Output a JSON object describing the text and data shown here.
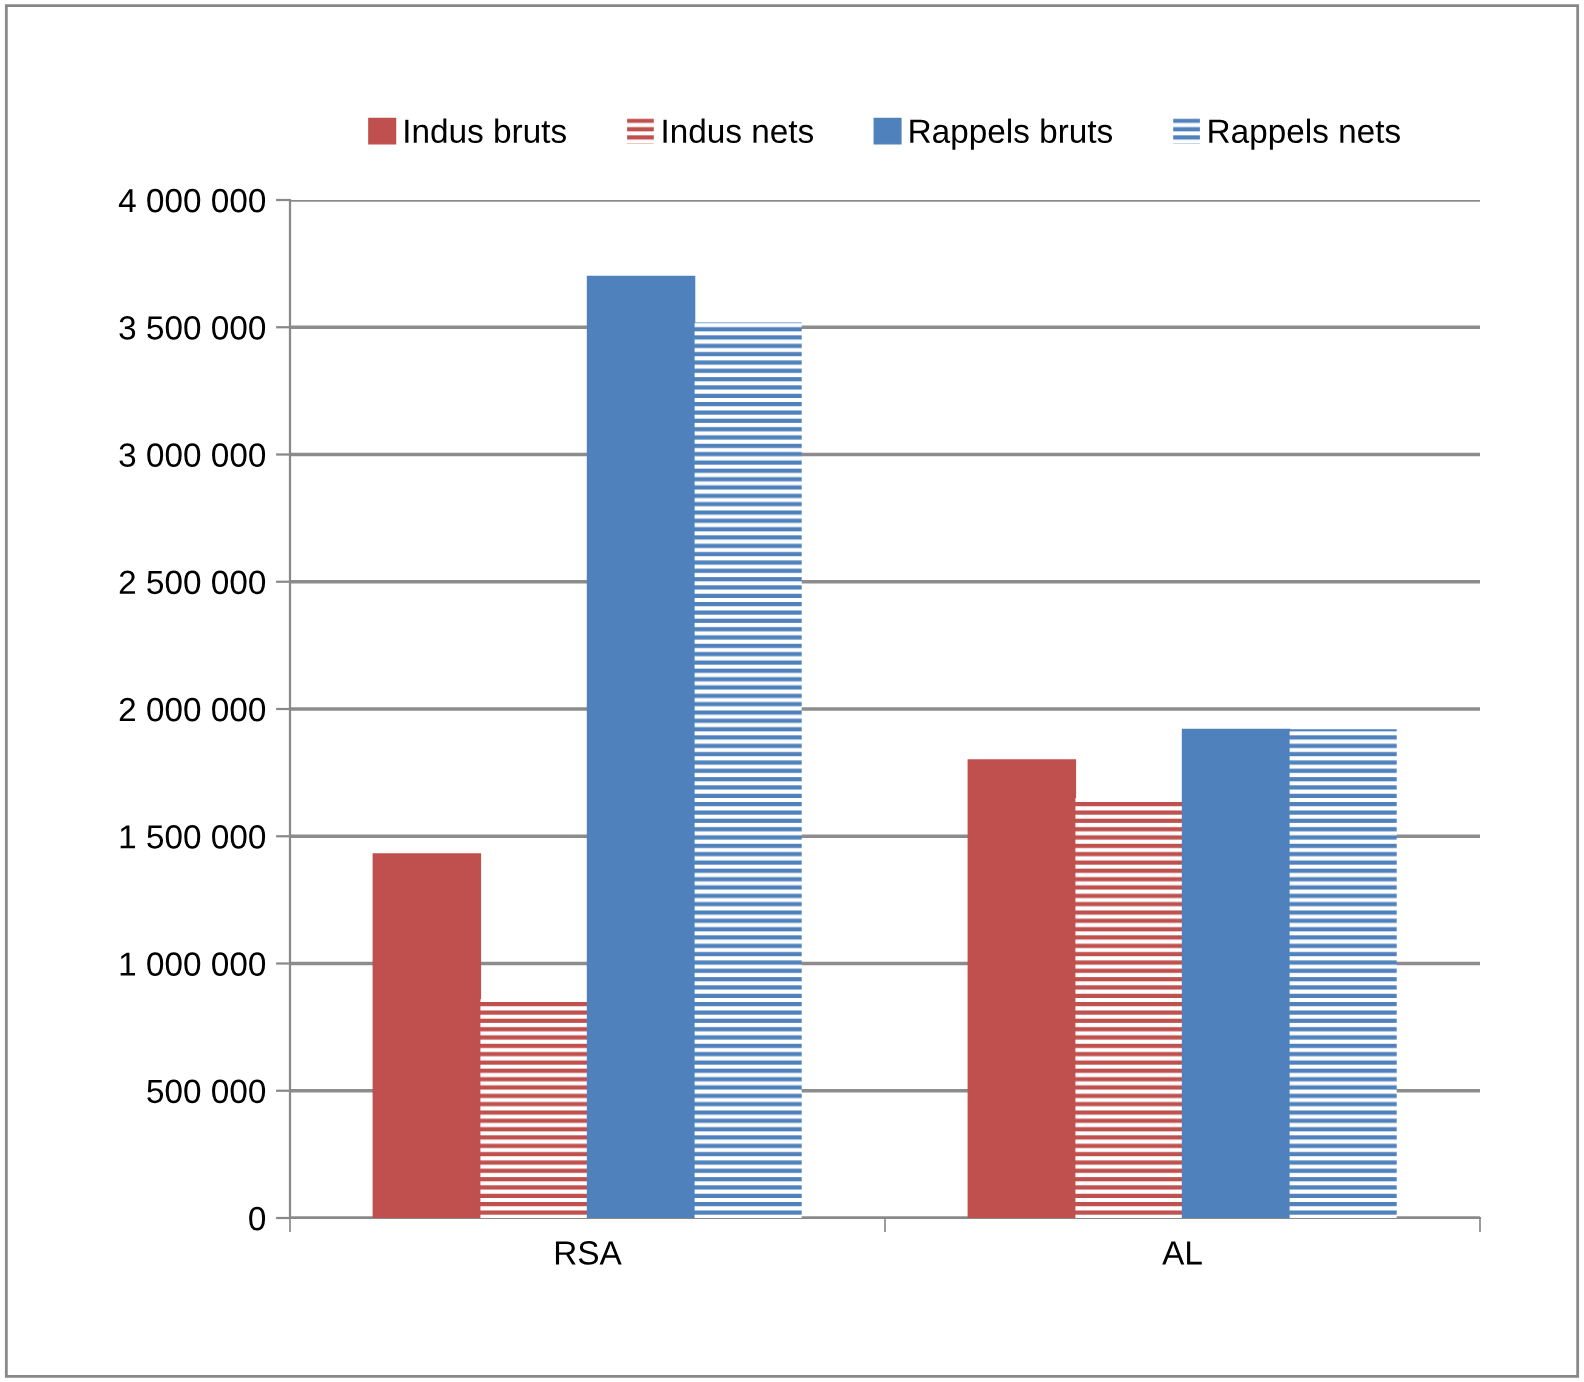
{
  "chart_data": {
    "type": "bar",
    "categories": [
      "RSA",
      "AL"
    ],
    "series": [
      {
        "name": "Indus bruts",
        "color": "#c0504d",
        "values": [
          1430000,
          1800000
        ]
      },
      {
        "name": "Indus nets",
        "color": "#c0504d",
        "values": [
          860000,
          1650000
        ]
      },
      {
        "name": "Rappels bruts",
        "color": "#4f81bd",
        "values": [
          3700000,
          1920000
        ]
      },
      {
        "name": "Rappels nets",
        "color": "#4f81bd",
        "values": [
          3520000,
          1920000
        ]
      }
    ],
    "ylim": [
      0,
      4000000
    ],
    "yticks": [
      {
        "value": 0,
        "label": "0"
      },
      {
        "value": 500000,
        "label": "500 000"
      },
      {
        "value": 1000000,
        "label": "1 000 000"
      },
      {
        "value": 1500000,
        "label": "1 500 000"
      },
      {
        "value": 2000000,
        "label": "2 000 000"
      },
      {
        "value": 2500000,
        "label": "2 500 000"
      },
      {
        "value": 3000000,
        "label": "3 000 000"
      },
      {
        "value": 3500000,
        "label": "3 500 000"
      },
      {
        "value": 4000000,
        "label": "4 000 000"
      }
    ],
    "grid": "y",
    "legend": "top"
  }
}
